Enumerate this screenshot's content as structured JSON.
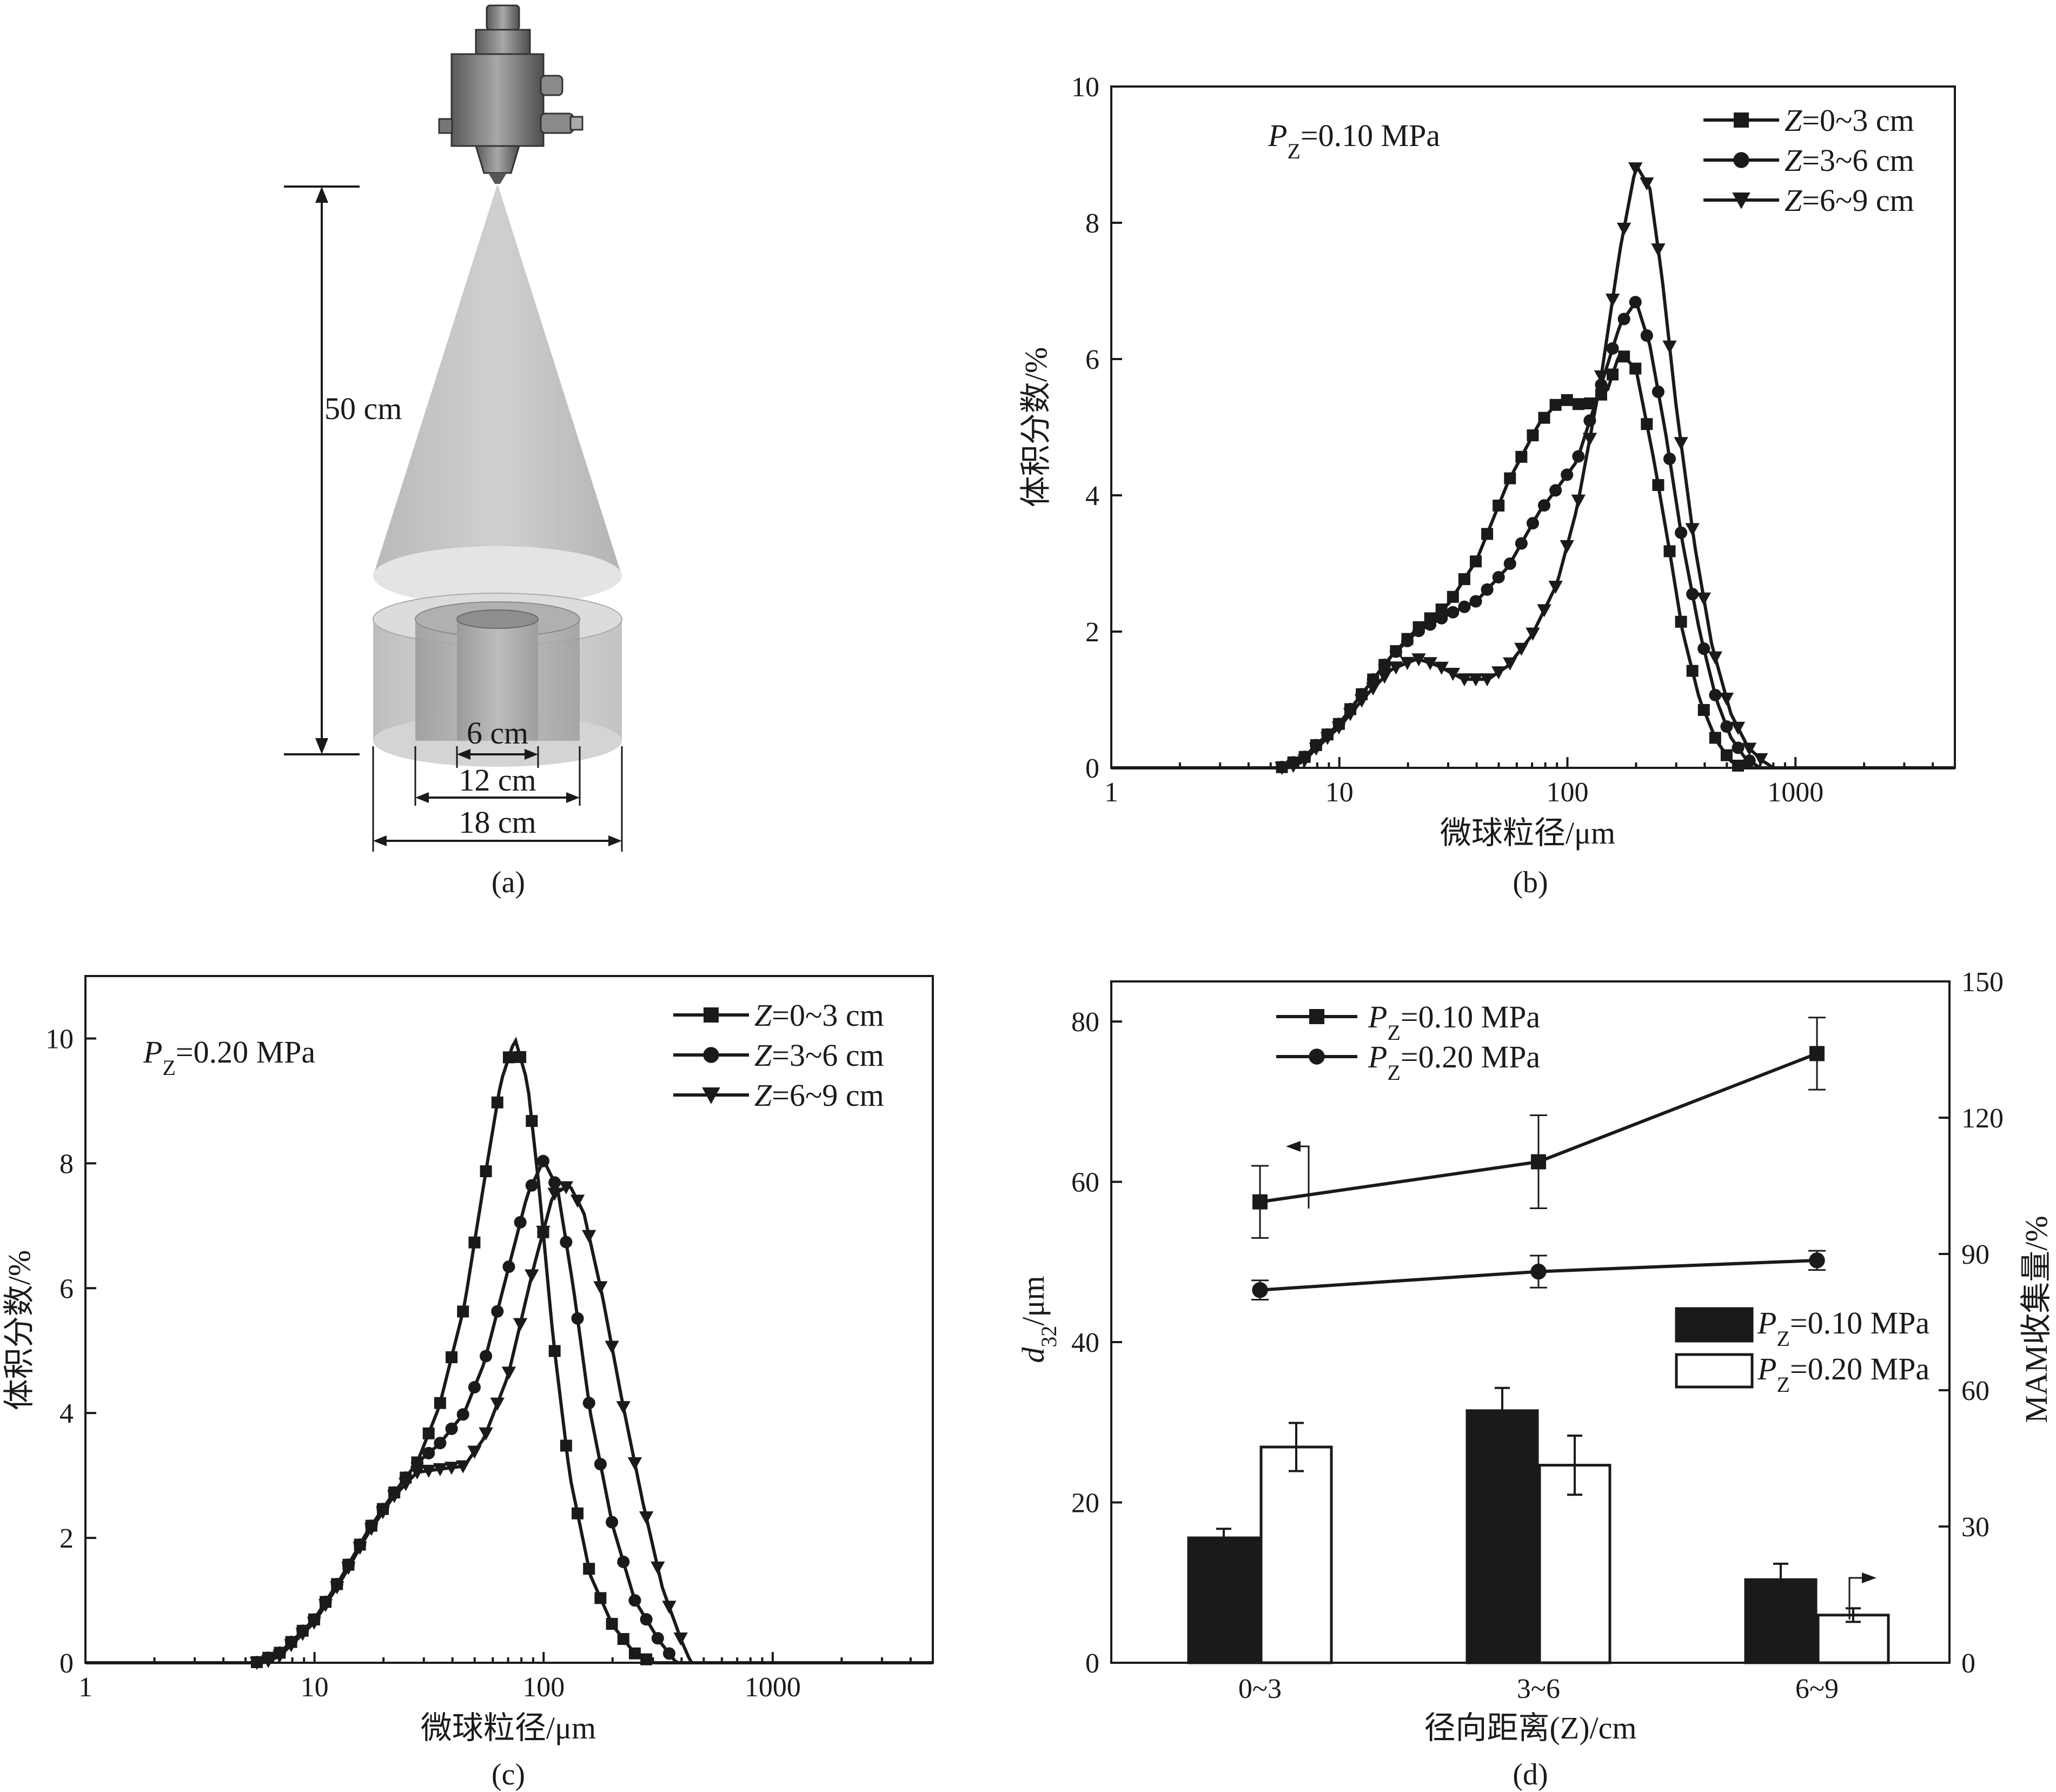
{
  "panel_a": {
    "caption": "(a)",
    "height_label": "50 cm",
    "ring_labels": [
      "6 cm",
      "12 cm",
      "18 cm"
    ]
  },
  "panel_b": {
    "caption": "(b)",
    "annotation": "P_Z=0.10 MPa",
    "legend": [
      "Z=0~3 cm",
      "Z=3~6 cm",
      "Z=6~9 cm"
    ]
  },
  "panel_c": {
    "caption": "(c)",
    "annotation": "P_Z=0.20 MPa",
    "legend": [
      "Z=0~3 cm",
      "Z=3~6 cm",
      "Z=6~9 cm"
    ]
  },
  "panel_d": {
    "caption": "(d)",
    "line_legend": [
      "P_Z=0.10 MPa",
      "P_Z=0.20 MPa"
    ],
    "bar_legend": [
      "P_Z=0.10 MPa",
      "P_Z=0.20 MPa"
    ]
  },
  "chart_data": [
    {
      "panel": "b",
      "type": "line",
      "xscale": "log",
      "xlabel": "微球粒径/μm",
      "ylabel": "体积分数/%",
      "xlim": [
        1,
        5000
      ],
      "ylim": [
        0,
        10
      ],
      "xticks": [
        1,
        10,
        100,
        1000
      ],
      "yticks": [
        0,
        2,
        4,
        6,
        8,
        10
      ],
      "series": [
        {
          "name": "Z=0~3 cm",
          "marker": "square",
          "x": [
            1,
            5.5,
            6,
            7,
            8,
            10,
            13,
            17,
            22,
            30,
            40,
            55,
            75,
            90,
            100,
            120,
            150,
            170,
            200,
            240,
            280,
            320,
            380,
            450,
            520,
            580,
            5000
          ],
          "y": [
            0,
            0,
            0.05,
            0.15,
            0.35,
            0.65,
            1.15,
            1.65,
            2.05,
            2.4,
            3.05,
            4.2,
            5.05,
            5.35,
            5.4,
            5.3,
            5.55,
            6.1,
            5.85,
            4.5,
            3.2,
            2.0,
            1.0,
            0.4,
            0.1,
            0,
            0
          ]
        },
        {
          "name": "Z=3~6 cm",
          "marker": "circle",
          "x": [
            1,
            5.5,
            6,
            7,
            8,
            10,
            13,
            17,
            22,
            30,
            40,
            55,
            75,
            90,
            110,
            140,
            170,
            200,
            230,
            270,
            320,
            380,
            450,
            520,
            600,
            700,
            5000
          ],
          "y": [
            0,
            0,
            0.05,
            0.15,
            0.35,
            0.65,
            1.15,
            1.65,
            2.0,
            2.25,
            2.45,
            2.95,
            3.75,
            4.1,
            4.5,
            5.6,
            6.5,
            6.85,
            6.2,
            4.9,
            3.3,
            2.0,
            1.0,
            0.45,
            0.15,
            0,
            0
          ]
        },
        {
          "name": "Z=6~9 cm",
          "marker": "triangle",
          "x": [
            1,
            6,
            7,
            8,
            10,
            13,
            17,
            22,
            27,
            35,
            45,
            55,
            70,
            90,
            110,
            140,
            170,
            200,
            230,
            260,
            300,
            360,
            430,
            520,
            620,
            720,
            800,
            5000
          ],
          "y": [
            0,
            0,
            0.1,
            0.3,
            0.6,
            1.05,
            1.45,
            1.6,
            1.5,
            1.3,
            1.3,
            1.5,
            1.95,
            2.7,
            3.8,
            5.7,
            7.6,
            8.85,
            8.5,
            7.2,
            5.3,
            3.3,
            1.8,
            0.8,
            0.3,
            0.1,
            0,
            0
          ]
        }
      ]
    },
    {
      "panel": "c",
      "type": "line",
      "xscale": "log",
      "xlabel": "微球粒径/μm",
      "ylabel": "体积分数/%",
      "xlim": [
        1,
        5000
      ],
      "ylim": [
        0,
        11
      ],
      "xticks": [
        1,
        10,
        100,
        1000
      ],
      "yticks": [
        0,
        2,
        4,
        6,
        8,
        10
      ],
      "series": [
        {
          "name": "Z=0~3 cm",
          "marker": "square",
          "x": [
            1,
            5.5,
            6,
            7,
            8,
            10,
            13,
            17,
            22,
            28,
            35,
            45,
            55,
            65,
            75,
            85,
            95,
            110,
            130,
            160,
            200,
            250,
            300,
            5000
          ],
          "y": [
            0,
            0,
            0.05,
            0.15,
            0.35,
            0.7,
            1.35,
            2.1,
            2.7,
            3.2,
            4.1,
            5.7,
            7.7,
            9.3,
            10.0,
            9.3,
            7.7,
            5.2,
            3.0,
            1.4,
            0.6,
            0.15,
            0,
            0
          ]
        },
        {
          "name": "Z=3~6 cm",
          "marker": "circle",
          "x": [
            1,
            5.5,
            6,
            7,
            8,
            10,
            13,
            17,
            22,
            28,
            35,
            45,
            55,
            70,
            85,
            100,
            115,
            135,
            160,
            200,
            250,
            320,
            380,
            5000
          ],
          "y": [
            0,
            0,
            0.05,
            0.15,
            0.35,
            0.7,
            1.35,
            2.1,
            2.7,
            3.2,
            3.5,
            4.0,
            4.8,
            6.3,
            7.5,
            8.05,
            7.6,
            6.0,
            4.0,
            2.2,
            1.0,
            0.35,
            0,
            0
          ]
        },
        {
          "name": "Z=6~9 cm",
          "marker": "triangle",
          "x": [
            1,
            6,
            7,
            8,
            10,
            13,
            17,
            22,
            28,
            35,
            45,
            55,
            70,
            90,
            110,
            130,
            150,
            180,
            220,
            270,
            330,
            400,
            440,
            5000
          ],
          "y": [
            0,
            0,
            0.1,
            0.3,
            0.65,
            1.3,
            2.05,
            2.65,
            3.05,
            3.1,
            3.15,
            3.6,
            4.6,
            6.3,
            7.5,
            7.65,
            7.2,
            5.9,
            4.2,
            2.6,
            1.2,
            0.35,
            0,
            0
          ]
        }
      ]
    },
    {
      "panel": "d",
      "type": "bar+line",
      "xlabel": "径向距离(Z)/cm",
      "ylabel_left": "d32/μm",
      "ylabel_right": "MAM收集量/%",
      "categories": [
        "0~3",
        "3~6",
        "6~9"
      ],
      "ylim_left": [
        0,
        85
      ],
      "ylim_right": [
        0,
        150
      ],
      "yticks_left": [
        0,
        20,
        40,
        60,
        80
      ],
      "yticks_right": [
        0,
        30,
        60,
        90,
        120,
        150
      ],
      "line_series": [
        {
          "name": "P_Z=0.10 MPa",
          "axis": "left",
          "marker": "square",
          "values": [
            57.5,
            62.5,
            76
          ],
          "errors": [
            4.5,
            5.8,
            4.5
          ]
        },
        {
          "name": "P_Z=0.20 MPa",
          "axis": "left",
          "marker": "circle",
          "values": [
            46.5,
            48.8,
            50.2
          ],
          "errors": [
            1.2,
            2.0,
            1.2
          ]
        }
      ],
      "bar_series": [
        {
          "name": "P_Z=0.10 MPa",
          "axis": "right",
          "fill": "#1a1a1a",
          "values": [
            27.5,
            55.5,
            18.3
          ],
          "errors": [
            2.0,
            5.0,
            3.5
          ]
        },
        {
          "name": "P_Z=0.20 MPa",
          "axis": "right",
          "fill": "#ffffff",
          "values": [
            47.5,
            43.5,
            10.5
          ],
          "errors": [
            5.3,
            6.5,
            1.5
          ]
        }
      ]
    }
  ]
}
